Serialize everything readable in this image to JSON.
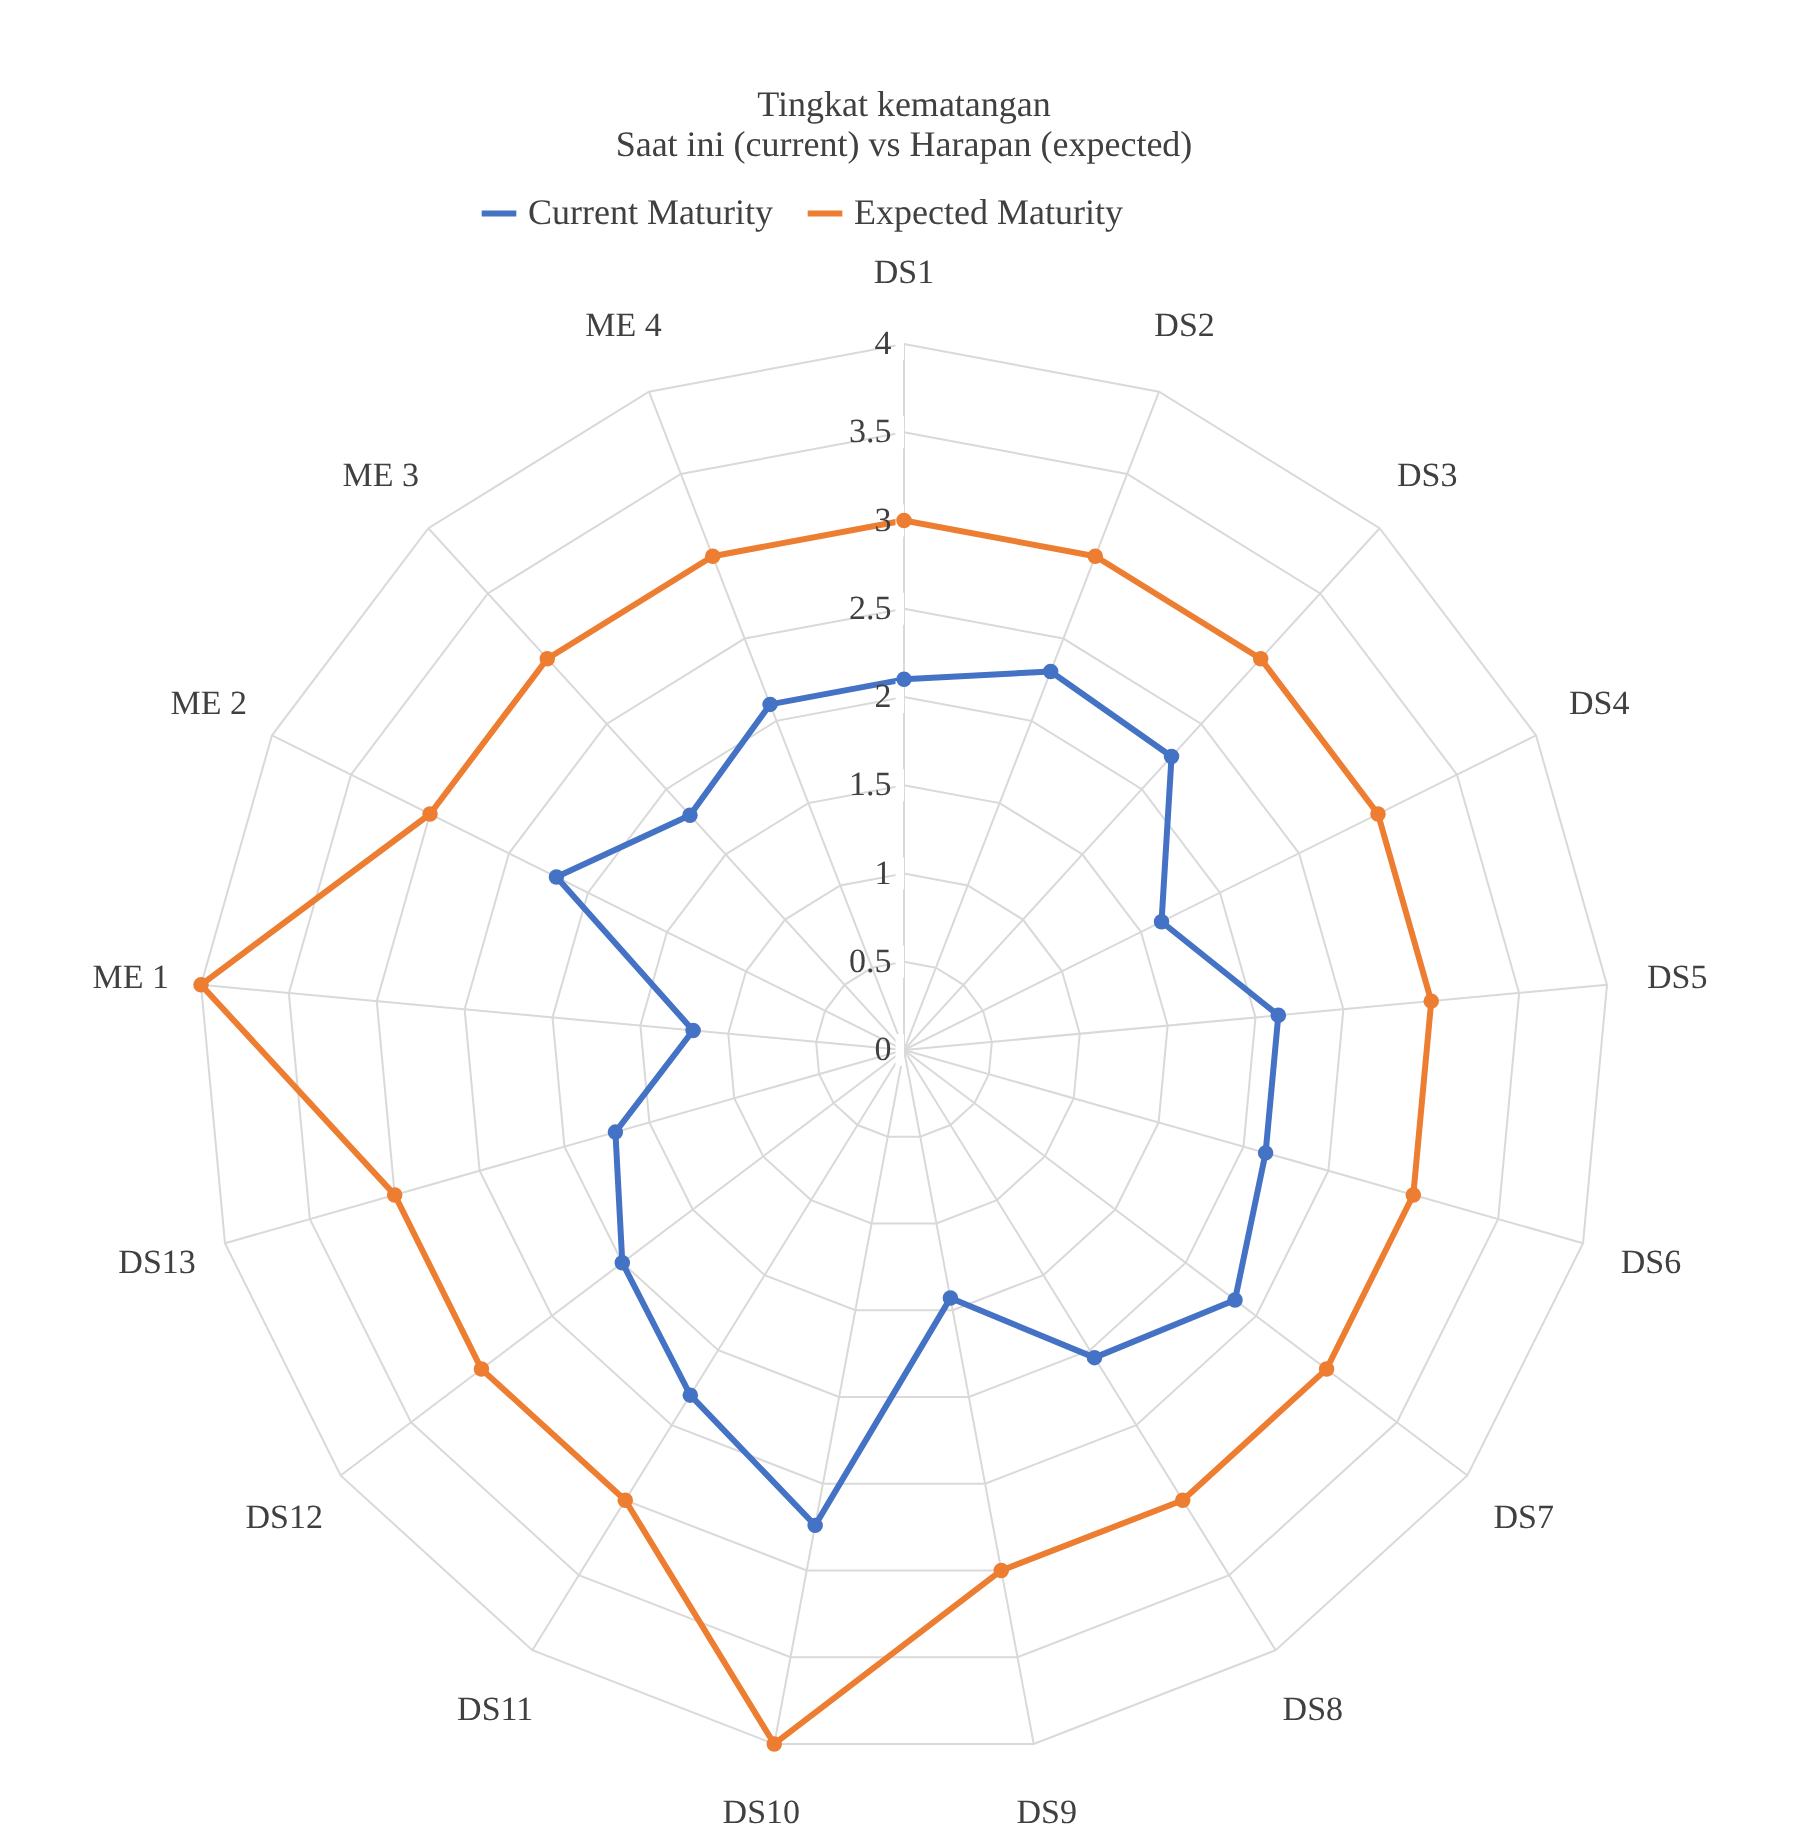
{
  "chart_data": {
    "type": "radar",
    "title": "Tingkat kematangan\nSaat ini (current) vs Harapan (expected)",
    "categories": [
      "DS1",
      "DS2",
      "DS3",
      "DS4",
      "DS5",
      "DS6",
      "DS7",
      "DS8",
      "DS9",
      "DS10",
      "DS11",
      "DS12",
      "DS13",
      "ME 1",
      "ME 2",
      "ME 3",
      "ME 4"
    ],
    "series": [
      {
        "name": "Current Maturity",
        "color": "#4472c4",
        "values": [
          2.1,
          2.3,
          2.25,
          1.63,
          2.13,
          2.13,
          2.35,
          2.05,
          1.43,
          2.74,
          2.3,
          2.0,
          1.7,
          1.2,
          2.2,
          1.8,
          2.1
        ]
      },
      {
        "name": "Expected Maturity",
        "color": "#ed7d31",
        "values": [
          3,
          3,
          3,
          3,
          3,
          3,
          3,
          3,
          3,
          4,
          3,
          3,
          3,
          4,
          3,
          3,
          3
        ]
      }
    ],
    "ylim": [
      0,
      4
    ],
    "yticks": [
      0,
      0.5,
      1,
      1.5,
      2,
      2.5,
      3,
      3.5,
      4
    ],
    "grid": true,
    "legend": "top",
    "marker": "circle",
    "line_style": "solid"
  }
}
